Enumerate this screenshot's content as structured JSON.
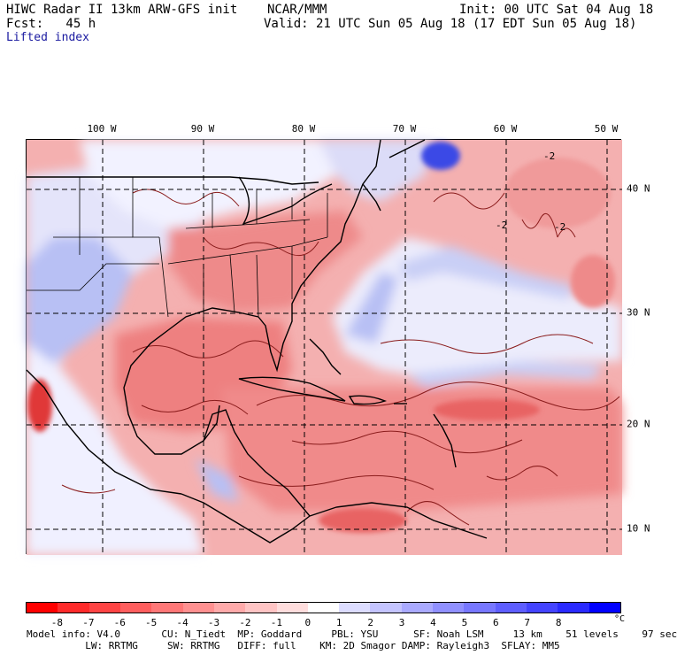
{
  "header": {
    "line1": "HIWC Radar II 13km ARW-GFS init    NCAR/MMM",
    "fcst": "Fcst:   45 h",
    "field": "Lifted index",
    "init": "Init: 00 UTC Sat 04 Aug 18",
    "valid": "Valid: 21 UTC Sun 05 Aug 18 (17 EDT Sun 05 Aug 18)"
  },
  "map": {
    "longitude_labels": [
      "100 W",
      "90 W",
      "80 W",
      "70 W",
      "60 W",
      "50 W"
    ],
    "latitude_labels": [
      "40 N",
      "30 N",
      "20 N",
      "10 N"
    ],
    "contour_labels": [
      "-2",
      "-2",
      "-2"
    ],
    "colors": {
      "ocean_base": "#f6b7b7",
      "land_stable": "#ffffff",
      "stable_blue": "#aab3f0",
      "strong_blue": "#3040e0",
      "unstable_red": "#e84646"
    }
  },
  "colorbar": {
    "ticks": [
      "-8",
      "-7",
      "-6",
      "-5",
      "-4",
      "-3",
      "-2",
      "-1",
      "0",
      "1",
      "2",
      "3",
      "4",
      "5",
      "6",
      "7",
      "8"
    ],
    "unit": "°C",
    "colors": [
      "#ff0000",
      "#ff2a2a",
      "#ff4444",
      "#ff5e5e",
      "#ff7777",
      "#ff9090",
      "#ffaaaa",
      "#ffc4c4",
      "#ffdddd",
      "#ffffff",
      "#dcdcff",
      "#c4c4ff",
      "#aaaaff",
      "#9090ff",
      "#7777ff",
      "#5e5eff",
      "#4444ff",
      "#2a2aff",
      "#0000ff"
    ]
  },
  "footer": {
    "line1": "Model info: V4.0       CU: N_Tiedt  MP: Goddard     PBL: YSU      SF: Noah LSM     13 km    51 levels    97 sec",
    "line2": "          LW: RRTMG     SW: RRTMG   DIFF: full    KM: 2D Smagor DAMP: Rayleigh3  SFLAY: MM5"
  }
}
